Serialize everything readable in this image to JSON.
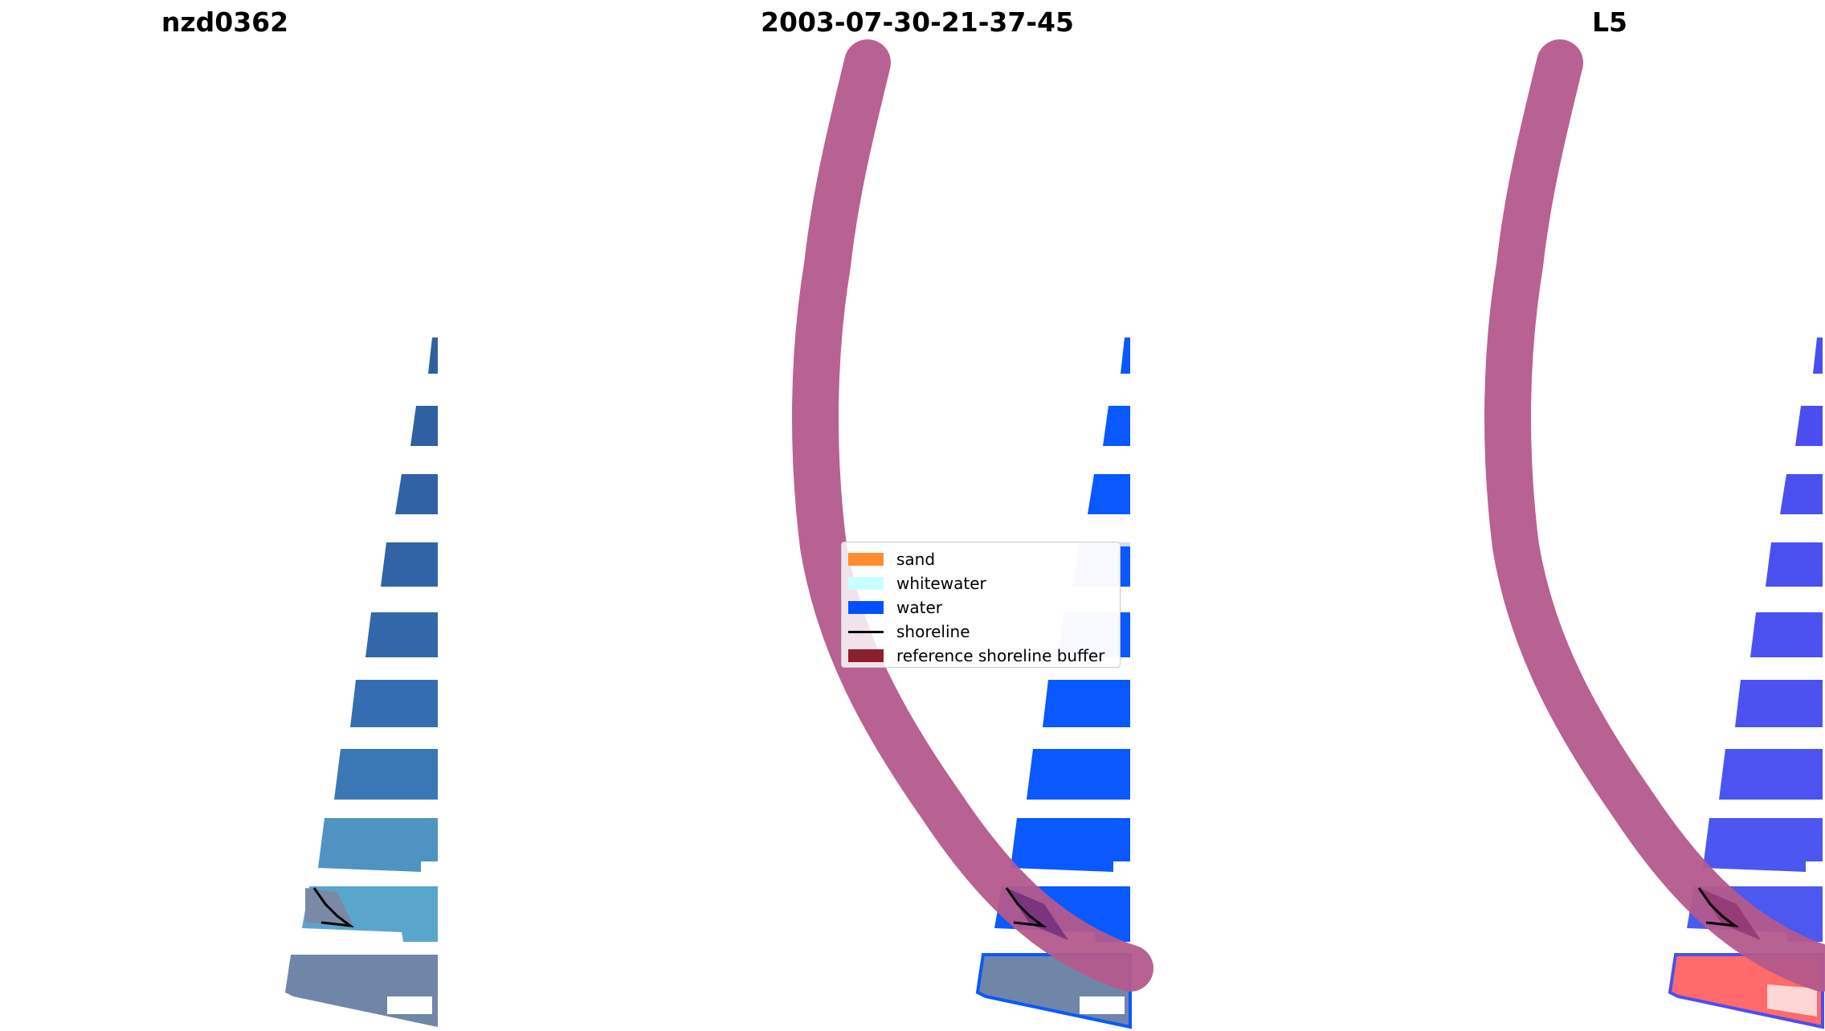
{
  "panels": [
    {
      "title": "nzd0362"
    },
    {
      "title": "2003-07-30-21-37-45"
    },
    {
      "title": "L5"
    }
  ],
  "legend": {
    "items": [
      {
        "label": "sand",
        "color": "#ff8c2e"
      },
      {
        "label": "whitewater",
        "color": "#c9ffff"
      },
      {
        "label": "water",
        "color": "#0050ff"
      },
      {
        "label": "shoreline",
        "color": "#000000"
      },
      {
        "label": "reference shoreline buffer",
        "color": "#8b1f2e"
      }
    ]
  },
  "colors": {
    "buffer": "#b35a8c",
    "rgb_water_dark": "#2f5fa0",
    "rgb_water_light": "#5aa5cc",
    "classified_water": "#0a58ff",
    "classified_whitewater": "#cfdcff",
    "mndwi_water": "#4a4ef0",
    "mndwi_sand": "#ff6a6a"
  }
}
